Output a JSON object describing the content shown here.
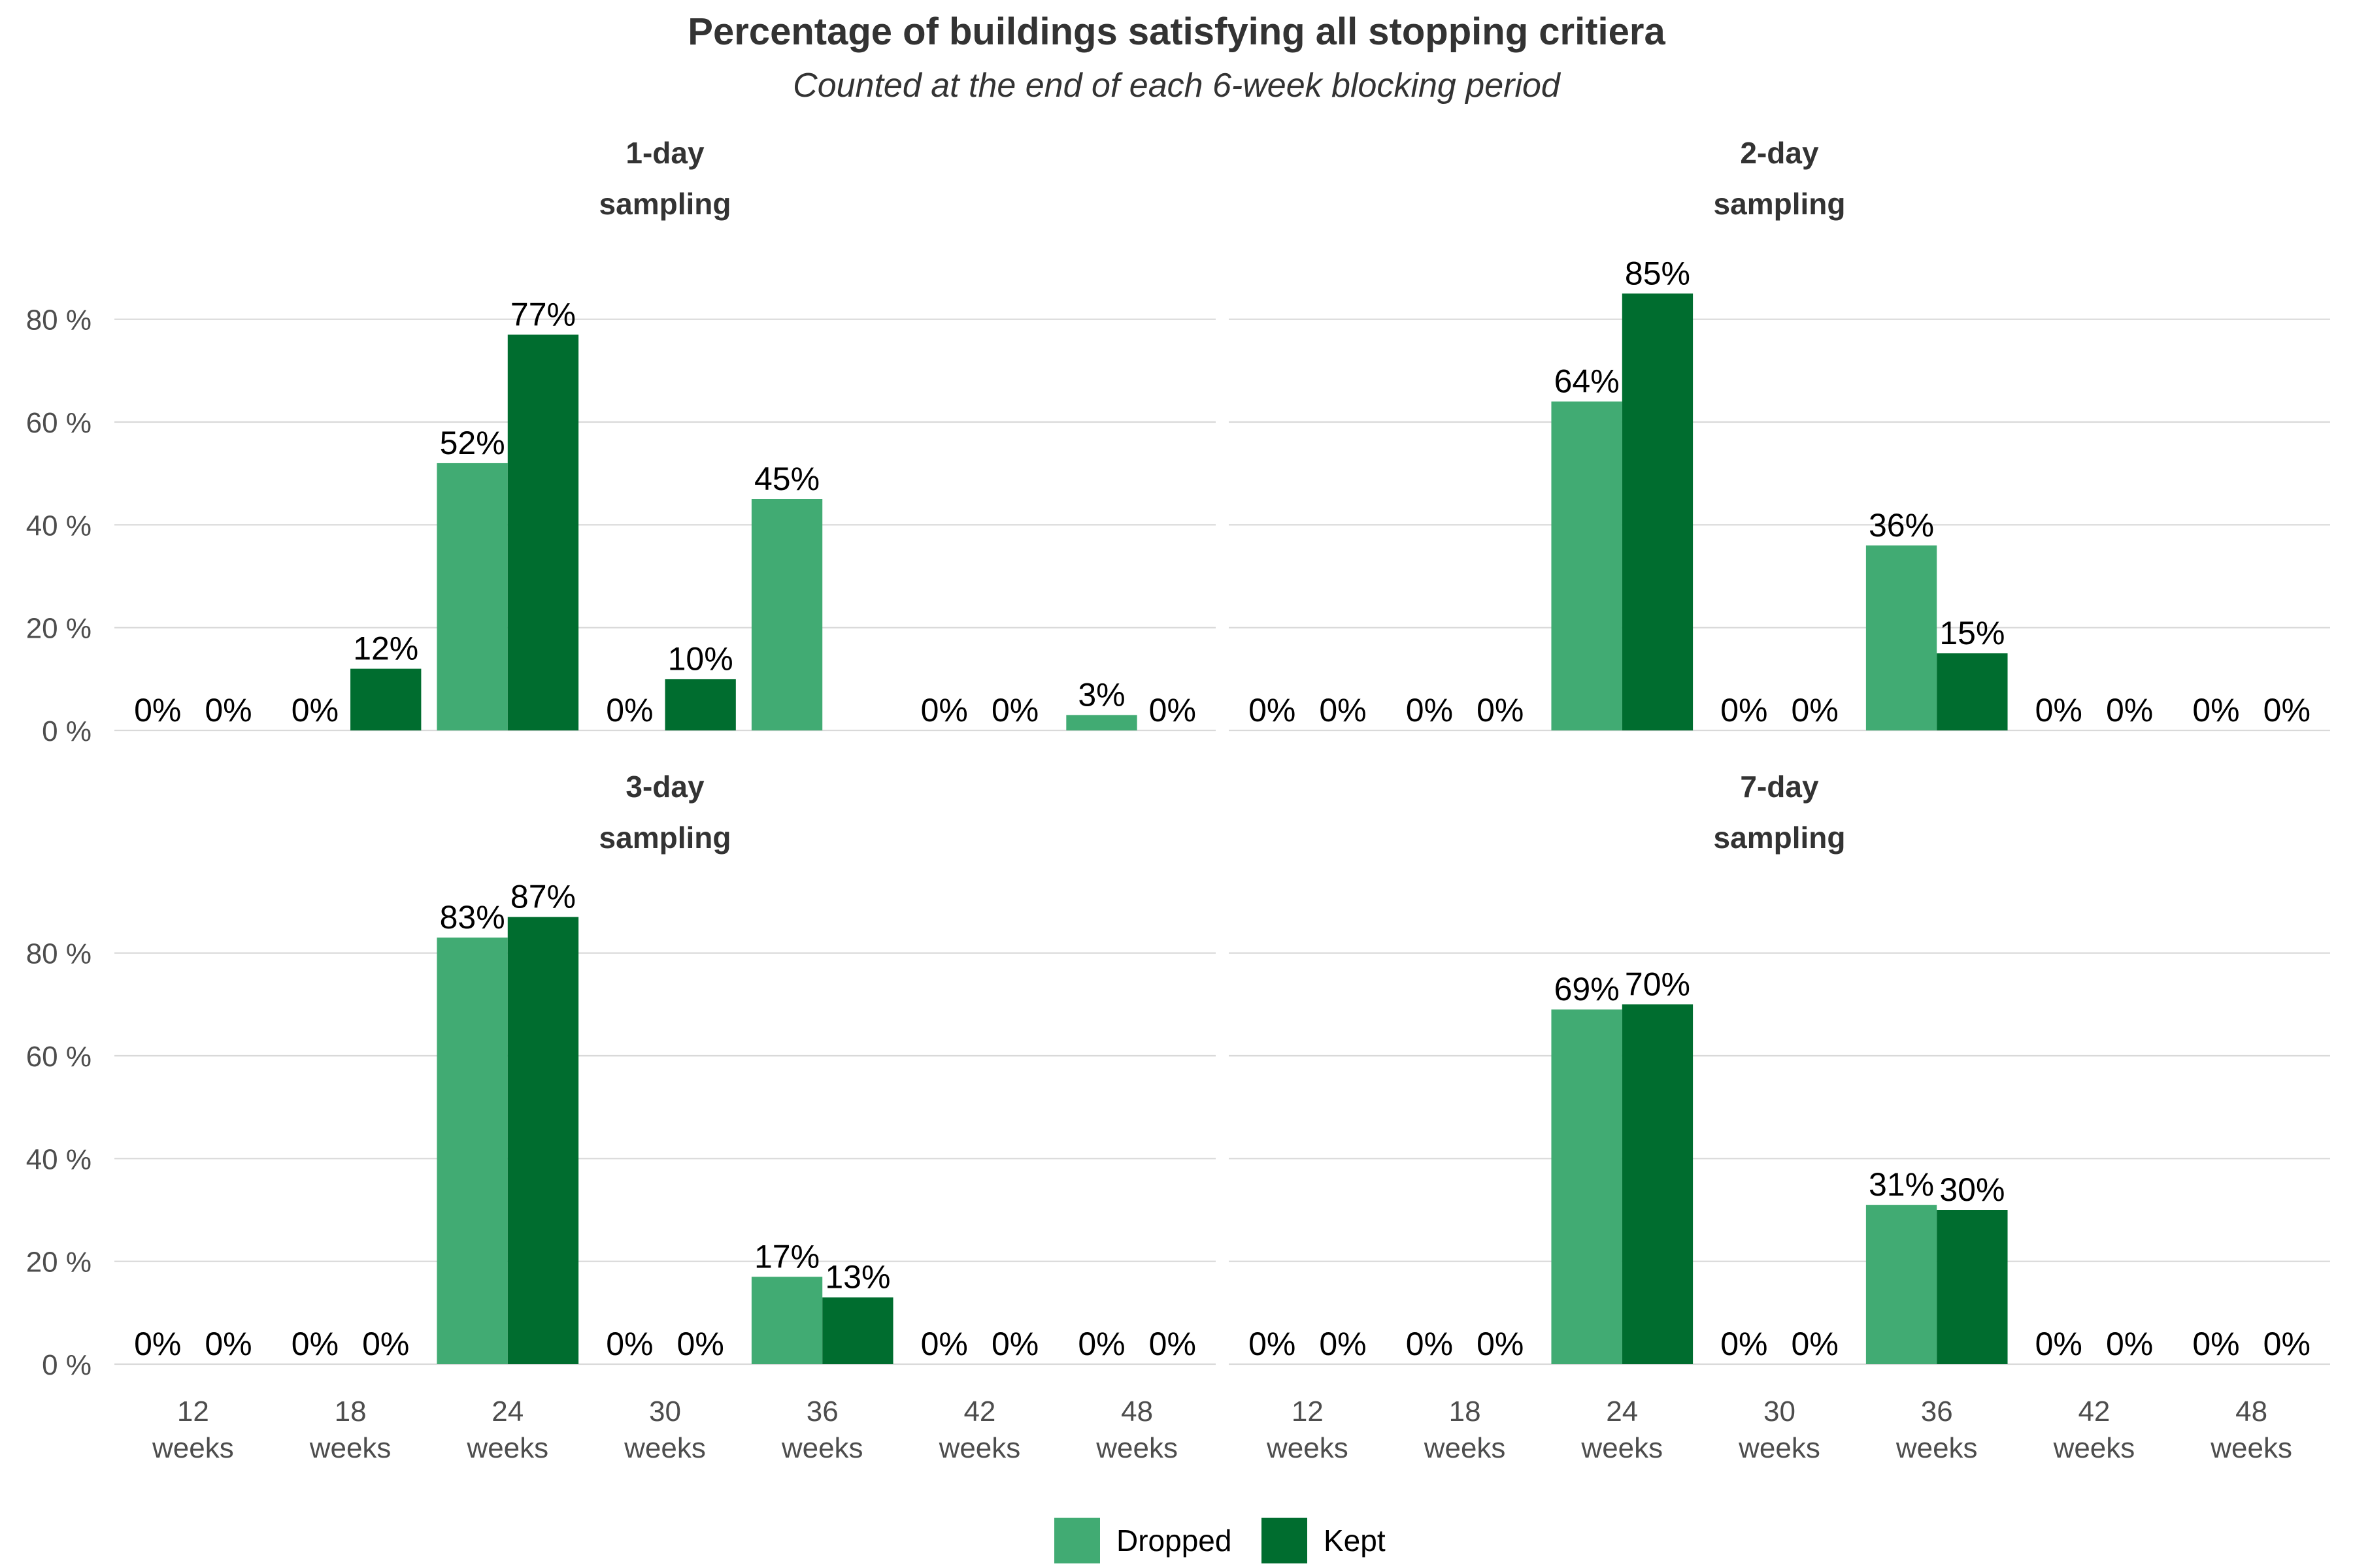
{
  "chart_data": {
    "type": "bar",
    "title": "Percentage of buildings satisfying all stopping critiera",
    "subtitle": "Counted at the end of each 6-week blocking period",
    "categories": [
      [
        "12",
        "weeks"
      ],
      [
        "18",
        "weeks"
      ],
      [
        "24",
        "weeks"
      ],
      [
        "30",
        "weeks"
      ],
      [
        "36",
        "weeks"
      ],
      [
        "42",
        "weeks"
      ],
      [
        "48",
        "weeks"
      ]
    ],
    "y_ticks": [
      "0 %",
      "20 %",
      "40 %",
      "60 %",
      "80 %"
    ],
    "y_tick_values": [
      0,
      20,
      40,
      60,
      80
    ],
    "ylim": [
      0,
      90
    ],
    "grid": true,
    "legend_position": "bottom",
    "legend": [
      {
        "name": "Dropped",
        "color": "#41ab73"
      },
      {
        "name": "Kept",
        "color": "#006d2f"
      }
    ],
    "panels": [
      {
        "strip": [
          "1-day",
          "sampling"
        ],
        "series": [
          {
            "name": "Dropped",
            "values": [
              0,
              0,
              52,
              0,
              45,
              0,
              3
            ],
            "labels": [
              "0%",
              "0%",
              "52%",
              "0%",
              "45%",
              "0%",
              "3%"
            ]
          },
          {
            "name": "Kept",
            "values": [
              0,
              12,
              77,
              10,
              0,
              0,
              0
            ],
            "labels": [
              "0%",
              "12%",
              "77%",
              "10%",
              "",
              "0%",
              "0%"
            ]
          }
        ]
      },
      {
        "strip": [
          "2-day",
          "sampling"
        ],
        "series": [
          {
            "name": "Dropped",
            "values": [
              0,
              0,
              64,
              0,
              36,
              0,
              0
            ],
            "labels": [
              "0%",
              "0%",
              "64%",
              "0%",
              "36%",
              "0%",
              "0%"
            ]
          },
          {
            "name": "Kept",
            "values": [
              0,
              0,
              85,
              0,
              15,
              0,
              0
            ],
            "labels": [
              "0%",
              "0%",
              "85%",
              "0%",
              "15%",
              "0%",
              "0%"
            ]
          }
        ]
      },
      {
        "strip": [
          "3-day",
          "sampling"
        ],
        "series": [
          {
            "name": "Dropped",
            "values": [
              0,
              0,
              83,
              0,
              17,
              0,
              0
            ],
            "labels": [
              "0%",
              "0%",
              "83%",
              "0%",
              "17%",
              "0%",
              "0%"
            ]
          },
          {
            "name": "Kept",
            "values": [
              0,
              0,
              87,
              0,
              13,
              0,
              0
            ],
            "labels": [
              "0%",
              "0%",
              "87%",
              "0%",
              "13%",
              "0%",
              "0%"
            ]
          }
        ]
      },
      {
        "strip": [
          "7-day",
          "sampling"
        ],
        "series": [
          {
            "name": "Dropped",
            "values": [
              0,
              0,
              69,
              0,
              31,
              0,
              0
            ],
            "labels": [
              "0%",
              "0%",
              "69%",
              "0%",
              "31%",
              "0%",
              "0%"
            ]
          },
          {
            "name": "Kept",
            "values": [
              0,
              0,
              70,
              0,
              30,
              0,
              0
            ],
            "labels": [
              "0%",
              "0%",
              "70%",
              "0%",
              "30%",
              "0%",
              "0%"
            ]
          }
        ]
      }
    ]
  }
}
